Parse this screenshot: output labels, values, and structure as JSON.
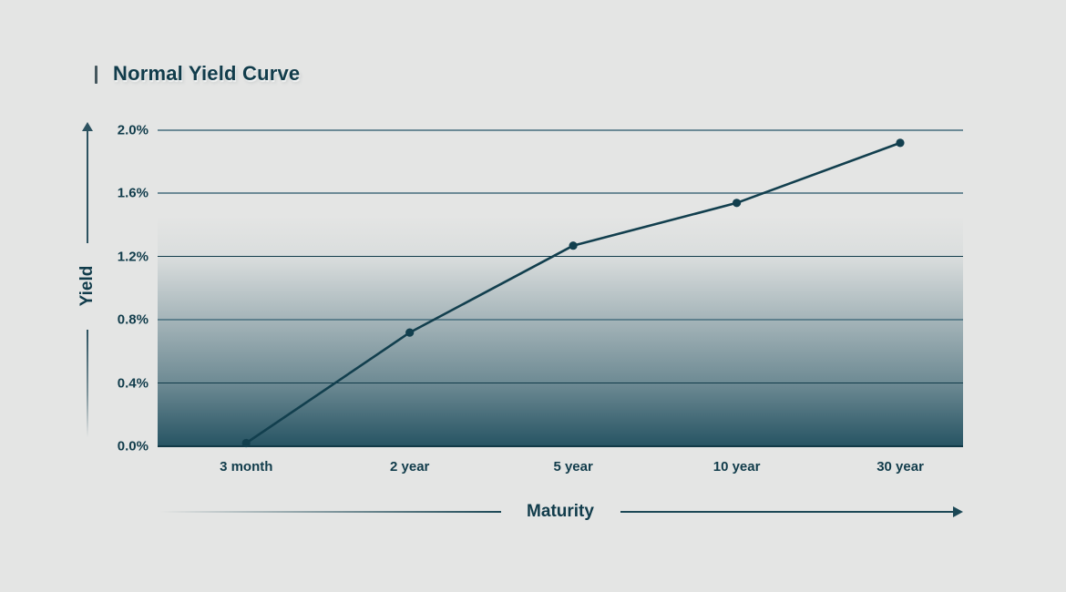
{
  "header": {
    "title": "Normal Yield Curve"
  },
  "y_axis": {
    "label": "Yield"
  },
  "x_axis": {
    "label": "Maturity"
  },
  "colors": {
    "background": "#e4e5e4",
    "ink": "#113c4b",
    "curve": "#123f4e",
    "grid_soft": "#4a7180",
    "grid_dark": "#123c4b",
    "area_fill_dark": "#1f4e5e"
  },
  "chart_data": {
    "type": "line",
    "title": "Normal Yield Curve",
    "xlabel": "Maturity",
    "ylabel": "Yield",
    "categories": [
      "3 month",
      "2 year",
      "5 year",
      "10 year",
      "30 year"
    ],
    "series": [
      {
        "name": "Yield",
        "values": [
          0.02,
          0.72,
          1.27,
          1.54,
          1.92
        ]
      }
    ],
    "ylim": [
      0,
      2.0
    ],
    "yticks": [
      {
        "value": 2.0,
        "label": "2.0%"
      },
      {
        "value": 1.6,
        "label": "1.6%"
      },
      {
        "value": 1.2,
        "label": "1.2%"
      },
      {
        "value": 0.8,
        "label": "0.8%"
      },
      {
        "value": 0.4,
        "label": "0.4%"
      },
      {
        "value": 0.0,
        "label": "0.0%"
      }
    ],
    "grid": "horizontal",
    "legend": "none",
    "marker": "circle",
    "area_fill": "teal gradient fading to dark at bottom"
  }
}
